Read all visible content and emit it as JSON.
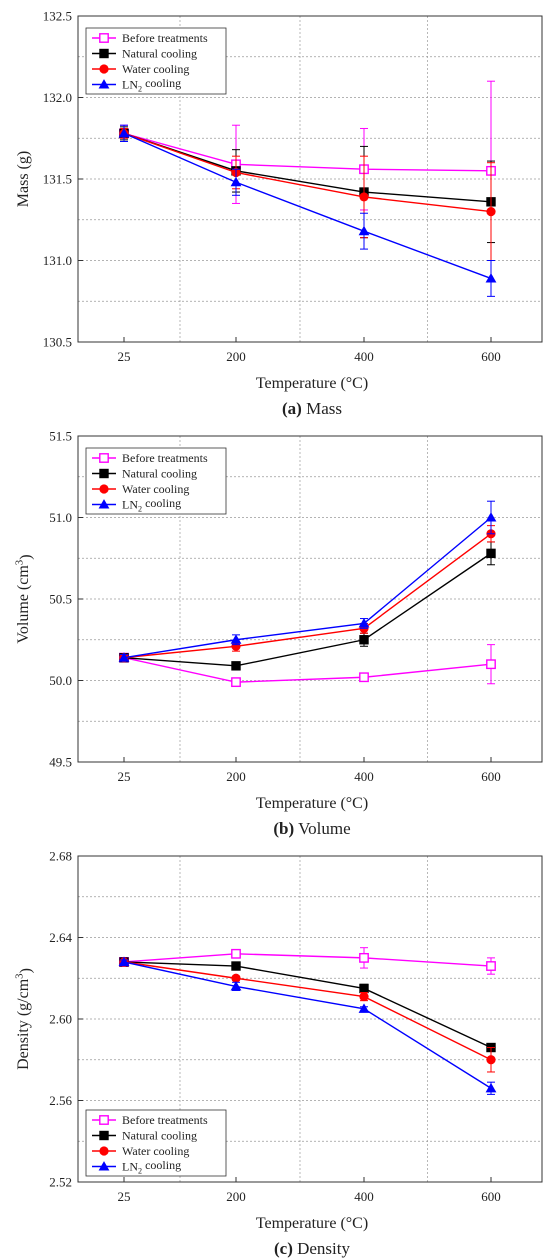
{
  "figure": {
    "series_names": [
      "Before treatments",
      "Natural cooling",
      "Water cooling",
      "LN₂ cooling"
    ]
  },
  "chart_data": [
    {
      "type": "line",
      "caption_letter": "(a)",
      "caption_text": "Mass",
      "ylabel": "Mass (g)",
      "xlabel": "Temperature (°C)",
      "categories": [
        "25",
        "200",
        "400",
        "600"
      ],
      "ylim": [
        130.5,
        132.5
      ],
      "yticks": [
        "130.5",
        "131.0",
        "131.5",
        "132.0",
        "132.5"
      ],
      "yminor_step": 0.25,
      "grid": true,
      "legend_position": "top-left",
      "series": [
        {
          "name": "Before treatments",
          "color": "#ff00ff",
          "marker": "square-open",
          "values": [
            131.78,
            131.59,
            131.56,
            131.55
          ],
          "errors": [
            0.05,
            0.24,
            0.25,
            0.55
          ]
        },
        {
          "name": "Natural cooling",
          "color": "#000000",
          "marker": "square",
          "values": [
            131.78,
            131.55,
            131.42,
            131.36
          ],
          "errors": [
            0.04,
            0.13,
            0.28,
            0.25
          ]
        },
        {
          "name": "Water cooling",
          "color": "#ff0000",
          "marker": "circle",
          "values": [
            131.78,
            131.54,
            131.39,
            131.3
          ],
          "errors": [
            0.03,
            0.1,
            0.25,
            0.3
          ]
        },
        {
          "name": "LN₂ cooling",
          "color": "#0000ff",
          "marker": "triangle",
          "values": [
            131.78,
            131.48,
            131.18,
            130.89
          ],
          "errors": [
            0.05,
            0.08,
            0.11,
            0.11
          ]
        }
      ]
    },
    {
      "type": "line",
      "caption_letter": "(b)",
      "caption_text": "Volume",
      "ylabel": "Volume (cm³)",
      "xlabel": "Temperature (°C)",
      "categories": [
        "25",
        "200",
        "400",
        "600"
      ],
      "ylim": [
        49.5,
        51.5
      ],
      "yticks": [
        "49.5",
        "50.0",
        "50.5",
        "51.0",
        "51.5"
      ],
      "yminor_step": 0.25,
      "grid": true,
      "legend_position": "top-left",
      "series": [
        {
          "name": "Before treatments",
          "color": "#ff00ff",
          "marker": "square-open",
          "values": [
            50.14,
            49.99,
            50.02,
            50.1
          ],
          "errors": [
            0.02,
            0.01,
            0.01,
            0.12
          ]
        },
        {
          "name": "Natural cooling",
          "color": "#000000",
          "marker": "square",
          "values": [
            50.14,
            50.09,
            50.25,
            50.78
          ],
          "errors": [
            0.02,
            0.02,
            0.04,
            0.07
          ]
        },
        {
          "name": "Water cooling",
          "color": "#ff0000",
          "marker": "circle",
          "values": [
            50.14,
            50.21,
            50.32,
            50.9
          ],
          "errors": [
            0.02,
            0.03,
            0.03,
            0.05
          ]
        },
        {
          "name": "LN₂ cooling",
          "color": "#0000ff",
          "marker": "triangle",
          "values": [
            50.14,
            50.25,
            50.35,
            51.0
          ],
          "errors": [
            0.02,
            0.03,
            0.03,
            0.1
          ]
        }
      ]
    },
    {
      "type": "line",
      "caption_letter": "(c)",
      "caption_text": "Density",
      "ylabel": "Density (g/cm³)",
      "xlabel": "Temperature (°C)",
      "categories": [
        "25",
        "200",
        "400",
        "600"
      ],
      "ylim": [
        2.52,
        2.68
      ],
      "yticks": [
        "2.52",
        "2.56",
        "2.60",
        "2.64",
        "2.68"
      ],
      "yminor_step": 0.02,
      "grid": true,
      "legend_position": "bottom-left",
      "series": [
        {
          "name": "Before treatments",
          "color": "#ff00ff",
          "marker": "square-open",
          "values": [
            2.628,
            2.632,
            2.63,
            2.626
          ],
          "errors": [
            0.001,
            0.001,
            0.005,
            0.004
          ]
        },
        {
          "name": "Natural cooling",
          "color": "#000000",
          "marker": "square",
          "values": [
            2.628,
            2.626,
            2.615,
            2.586
          ],
          "errors": [
            0.001,
            0.001,
            0.002,
            0.001
          ]
        },
        {
          "name": "Water cooling",
          "color": "#ff0000",
          "marker": "circle",
          "values": [
            2.628,
            2.62,
            2.611,
            2.58
          ],
          "errors": [
            0.001,
            0.001,
            0.002,
            0.006
          ]
        },
        {
          "name": "LN₂ cooling",
          "color": "#0000ff",
          "marker": "triangle",
          "values": [
            2.628,
            2.616,
            2.605,
            2.566
          ],
          "errors": [
            0.001,
            0.002,
            0.001,
            0.003
          ]
        }
      ]
    }
  ]
}
